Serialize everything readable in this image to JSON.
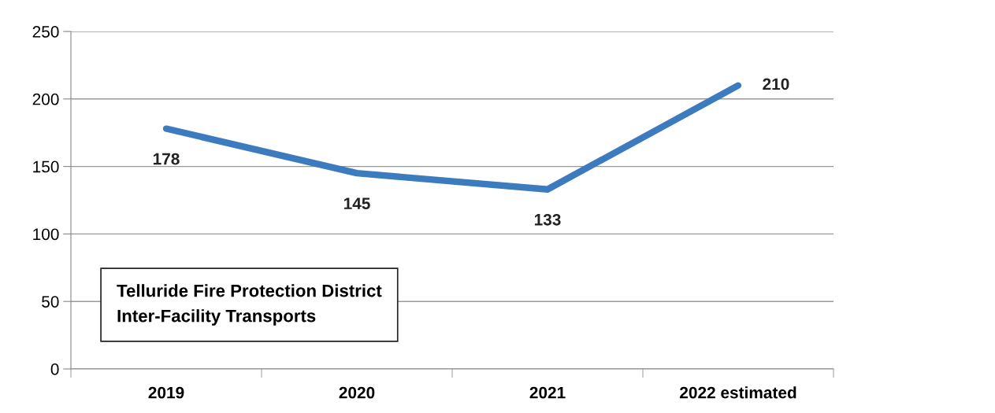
{
  "chart_data": {
    "type": "line",
    "title": "Telluride Fire Protection District\nInter-Facility Transports",
    "categories": [
      "2019",
      "2020",
      "2021",
      "2022 estimated"
    ],
    "series": [
      {
        "color": "#3d7bbf",
        "values": [
          178,
          145,
          133,
          210
        ]
      }
    ],
    "ylim": [
      0,
      250
    ],
    "yticks": [
      0,
      50,
      100,
      150,
      200,
      250
    ],
    "grid": "y",
    "data_labels": true,
    "legend": false,
    "marker": "none",
    "line_style": "solid"
  }
}
